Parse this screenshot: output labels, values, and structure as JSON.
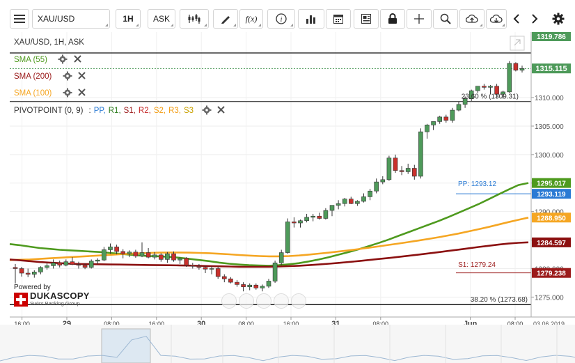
{
  "toolbar": {
    "menu_icon": "hamburger-icon",
    "instrument": "XAU/USD",
    "timeframe": "1H",
    "side": "ASK",
    "icons": [
      "candles-icon",
      "pencil-icon",
      "function-icon",
      "info-icon",
      "bar-chart-icon",
      "calendar-icon",
      "news-icon",
      "lock-icon",
      "crosshair-icon",
      "zoom-icon",
      "upload-icon",
      "download-icon",
      "arrow-left-icon",
      "arrow-right-icon",
      "settings-icon"
    ],
    "fx_label": "f(x)"
  },
  "legend": {
    "title": "XAU/USD, 1H, ASK",
    "sma55": "SMA (55)",
    "sma200": "SMA (200)",
    "sma100": "SMA (100)",
    "pivot_name": "PIVOTPOINT (0, 9)",
    "pivot_sep": ":",
    "pivot_items": [
      {
        "t": "PP,",
        "c": "#2a7ad4"
      },
      {
        "t": "R1,",
        "c": "#2e7d1e"
      },
      {
        "t": "S1,",
        "c": "#9b1b1b"
      },
      {
        "t": "R2,",
        "c": "#c62828"
      },
      {
        "t": "S2,",
        "c": "#f39c12"
      },
      {
        "t": "R3,",
        "c": "#f39c12"
      },
      {
        "t": "S3",
        "c": "#c9a100"
      }
    ]
  },
  "colors": {
    "up": "#4e9a5a",
    "down": "#c9302c",
    "sma55": "#4e9a1e",
    "sma100": "#f5a623",
    "sma200": "#8b1010",
    "pp": "#2a7ad4",
    "s1": "#9b1b1b",
    "price": "#4e9a5a"
  },
  "watermark": {
    "powered": "Powered by",
    "brand": "DUKASCOPY",
    "sub": "Swiss Banking Group"
  },
  "annotations": {
    "fib_top": "23.60 % (1309.31)",
    "fib_bottom": "38.20 % (1273.68)",
    "pp_label": "PP: 1293.12",
    "s1_label": "S1: 1279.24"
  },
  "chart_data": {
    "type": "candlestick",
    "instrument": "XAU/USD",
    "timeframe": "1H",
    "side": "ASK",
    "ylim": [
      1271.5,
      1321.5
    ],
    "y_ticks": [
      1275,
      1280,
      1285,
      1290,
      1295,
      1300,
      1305,
      1310
    ],
    "y_tick_labels": [
      "1275.000",
      "1280.000",
      "1285.000",
      "1290.000",
      "1295.000",
      "1300.000",
      "1305.000",
      "1310.000"
    ],
    "x_tick_labels": [
      "16:00",
      "29",
      "08:00",
      "16:00",
      "30",
      "08:00",
      "16:00",
      "31",
      "08:00",
      "Jun",
      "08:00"
    ],
    "x_tick_hours": [
      -8,
      0,
      8,
      16,
      24,
      32,
      40,
      48,
      56,
      72,
      80
    ],
    "date_label": "03.06.2019",
    "candles": [
      [
        1280.2,
        1280.8,
        1277.4,
        1280.0
      ],
      [
        1280.0,
        1280.3,
        1278.6,
        1279.2
      ],
      [
        1279.2,
        1280.0,
        1278.5,
        1279.0
      ],
      [
        1279.0,
        1279.7,
        1278.4,
        1279.4
      ],
      [
        1279.4,
        1280.4,
        1279.0,
        1280.2
      ],
      [
        1280.2,
        1281.0,
        1279.8,
        1280.5
      ],
      [
        1280.5,
        1281.6,
        1280.0,
        1281.0
      ],
      [
        1281.0,
        1281.4,
        1280.2,
        1280.6
      ],
      [
        1280.6,
        1281.6,
        1280.4,
        1281.2
      ],
      [
        1281.2,
        1282.0,
        1280.6,
        1280.7
      ],
      [
        1280.7,
        1281.2,
        1280.0,
        1280.6
      ],
      [
        1280.6,
        1280.9,
        1279.9,
        1280.2
      ],
      [
        1280.2,
        1281.6,
        1280.0,
        1281.3
      ],
      [
        1281.3,
        1281.8,
        1280.8,
        1281.5
      ],
      [
        1281.5,
        1283.8,
        1281.3,
        1283.3
      ],
      [
        1283.3,
        1284.4,
        1282.6,
        1283.8
      ],
      [
        1283.8,
        1284.2,
        1282.5,
        1283.0
      ],
      [
        1283.0,
        1283.4,
        1281.8,
        1282.6
      ],
      [
        1282.6,
        1283.2,
        1282.0,
        1282.9
      ],
      [
        1282.9,
        1283.3,
        1281.9,
        1282.2
      ],
      [
        1282.2,
        1284.6,
        1282.0,
        1282.8
      ],
      [
        1282.8,
        1283.6,
        1281.8,
        1282.0
      ],
      [
        1282.0,
        1282.9,
        1281.6,
        1282.4
      ],
      [
        1282.4,
        1282.7,
        1281.2,
        1281.6
      ],
      [
        1281.6,
        1282.9,
        1281.0,
        1282.6
      ],
      [
        1282.6,
        1283.0,
        1281.2,
        1281.5
      ],
      [
        1281.5,
        1282.0,
        1280.8,
        1281.8
      ],
      [
        1281.8,
        1282.0,
        1280.3,
        1280.6
      ],
      [
        1280.6,
        1281.0,
        1280.0,
        1280.4
      ],
      [
        1280.4,
        1280.8,
        1279.8,
        1280.2
      ],
      [
        1280.2,
        1280.5,
        1279.2,
        1279.9
      ],
      [
        1279.9,
        1280.4,
        1279.0,
        1280.0
      ],
      [
        1280.0,
        1280.3,
        1278.2,
        1278.6
      ],
      [
        1278.6,
        1279.0,
        1277.6,
        1278.2
      ],
      [
        1278.2,
        1278.5,
        1277.4,
        1277.6
      ],
      [
        1277.6,
        1278.0,
        1276.8,
        1277.2
      ],
      [
        1277.2,
        1277.6,
        1276.0,
        1276.8
      ],
      [
        1276.8,
        1277.4,
        1276.2,
        1277.1
      ],
      [
        1277.1,
        1277.4,
        1276.3,
        1276.6
      ],
      [
        1276.6,
        1277.2,
        1276.0,
        1276.9
      ],
      [
        1276.9,
        1278.2,
        1276.6,
        1277.8
      ],
      [
        1277.8,
        1281.4,
        1277.5,
        1281.0
      ],
      [
        1281.0,
        1283.3,
        1280.6,
        1282.8
      ],
      [
        1282.8,
        1288.8,
        1282.6,
        1288.2
      ],
      [
        1288.2,
        1289.0,
        1287.2,
        1288.0
      ],
      [
        1288.0,
        1288.6,
        1287.2,
        1288.4
      ],
      [
        1288.4,
        1289.6,
        1288.1,
        1289.0
      ],
      [
        1289.0,
        1289.6,
        1288.3,
        1289.2
      ],
      [
        1289.2,
        1289.8,
        1288.6,
        1288.8
      ],
      [
        1288.8,
        1290.6,
        1288.6,
        1290.2
      ],
      [
        1290.2,
        1291.0,
        1289.2,
        1291.1
      ],
      [
        1291.1,
        1292.0,
        1290.4,
        1291.4
      ],
      [
        1291.4,
        1292.4,
        1290.9,
        1292.2
      ],
      [
        1292.2,
        1292.6,
        1291.3,
        1291.4
      ],
      [
        1291.4,
        1292.0,
        1291.0,
        1291.8
      ],
      [
        1291.8,
        1293.2,
        1291.6,
        1292.6
      ],
      [
        1292.6,
        1294.0,
        1292.0,
        1293.6
      ],
      [
        1293.6,
        1295.8,
        1293.2,
        1295.2
      ],
      [
        1295.2,
        1296.2,
        1294.8,
        1295.6
      ],
      [
        1295.6,
        1299.8,
        1295.4,
        1299.4
      ],
      [
        1299.4,
        1300.0,
        1296.8,
        1297.2
      ],
      [
        1297.2,
        1298.0,
        1296.4,
        1297.0
      ],
      [
        1297.0,
        1298.4,
        1296.6,
        1297.6
      ],
      [
        1297.6,
        1298.2,
        1295.6,
        1296.2
      ],
      [
        1296.2,
        1304.6,
        1295.8,
        1304.0
      ],
      [
        1304.0,
        1305.4,
        1302.8,
        1305.2
      ],
      [
        1305.2,
        1305.8,
        1304.3,
        1305.8
      ],
      [
        1305.8,
        1306.8,
        1305.4,
        1306.6
      ],
      [
        1306.6,
        1307.0,
        1305.6,
        1306.0
      ],
      [
        1306.0,
        1308.2,
        1305.6,
        1307.8
      ],
      [
        1307.8,
        1309.3,
        1307.6,
        1308.8
      ],
      [
        1308.8,
        1310.2,
        1308.2,
        1309.8
      ],
      [
        1309.8,
        1311.4,
        1309.4,
        1311.2
      ],
      [
        1311.2,
        1312.0,
        1310.8,
        1312.0
      ],
      [
        1312.0,
        1312.4,
        1311.4,
        1311.8
      ],
      [
        1311.8,
        1312.2,
        1310.6,
        1312.0
      ],
      [
        1312.0,
        1312.4,
        1310.0,
        1310.6
      ],
      [
        1310.6,
        1311.2,
        1309.8,
        1311.0
      ],
      [
        1311.0,
        1316.4,
        1310.8,
        1316.0
      ],
      [
        1316.0,
        1316.2,
        1314.6,
        1314.8
      ],
      [
        1314.8,
        1315.6,
        1314.4,
        1315.1
      ]
    ],
    "series": [
      {
        "name": "SMA (55)",
        "values": [
          1284.3,
          1284.1,
          1283.85,
          1283.6,
          1283.45,
          1283.3,
          1283.2,
          1283.1,
          1283.0,
          1282.9,
          1282.75,
          1282.6,
          1282.45,
          1282.3,
          1282.2,
          1282.15,
          1282.05,
          1281.9,
          1281.7,
          1281.5,
          1281.3,
          1281.05,
          1280.85,
          1280.7,
          1280.6,
          1280.55,
          1280.5,
          1280.6,
          1280.75,
          1280.95,
          1281.25,
          1281.6,
          1282.0,
          1282.45,
          1282.9,
          1283.4,
          1283.95,
          1284.5,
          1285.1,
          1285.75,
          1286.4,
          1287.05,
          1287.7,
          1288.35,
          1289.05,
          1289.8,
          1290.55,
          1291.3,
          1292.15,
          1293.0,
          1293.85,
          1294.65,
          1295.02
        ]
      },
      {
        "name": "SMA (100)",
        "values": [
          1281.5,
          1281.55,
          1281.6,
          1281.7,
          1281.8,
          1281.9,
          1282.0,
          1282.1,
          1282.2,
          1282.3,
          1282.4,
          1282.5,
          1282.6,
          1282.68,
          1282.75,
          1282.8,
          1282.82,
          1282.82,
          1282.8,
          1282.75,
          1282.7,
          1282.6,
          1282.5,
          1282.38,
          1282.28,
          1282.2,
          1282.15,
          1282.15,
          1282.2,
          1282.3,
          1282.45,
          1282.62,
          1282.8,
          1283.0,
          1283.2,
          1283.42,
          1283.65,
          1283.9,
          1284.15,
          1284.4,
          1284.65,
          1284.92,
          1285.2,
          1285.5,
          1285.82,
          1286.15,
          1286.52,
          1286.9,
          1287.3,
          1287.72,
          1288.15,
          1288.55,
          1288.95
        ]
      },
      {
        "name": "SMA (200)",
        "values": [
          1281.6,
          1281.45,
          1281.3,
          1281.15,
          1281.05,
          1280.95,
          1280.85,
          1280.8,
          1280.78,
          1280.75,
          1280.72,
          1280.7,
          1280.68,
          1280.65,
          1280.62,
          1280.6,
          1280.58,
          1280.56,
          1280.52,
          1280.48,
          1280.44,
          1280.4,
          1280.36,
          1280.32,
          1280.3,
          1280.3,
          1280.32,
          1280.36,
          1280.42,
          1280.5,
          1280.6,
          1280.72,
          1280.85,
          1281.0,
          1281.16,
          1281.32,
          1281.5,
          1281.68,
          1281.86,
          1282.05,
          1282.25,
          1282.45,
          1282.66,
          1282.88,
          1283.1,
          1283.32,
          1283.55,
          1283.78,
          1284.0,
          1284.2,
          1284.38,
          1284.52,
          1284.6
        ]
      }
    ],
    "pivot_lines": {
      "PP": 1293.12,
      "S1": 1279.24
    },
    "fib_levels": [
      {
        "label": "23.60 %",
        "value": 1309.31
      },
      {
        "label": "38.20 %",
        "value": 1273.68
      }
    ],
    "price_tags": [
      {
        "value": 1319.786,
        "text": "1319.786"
      },
      {
        "value": 1315.115,
        "text": "1315.115"
      },
      {
        "value": 1295.017,
        "text": "1295.017"
      },
      {
        "value": 1293.119,
        "text": "1293.119"
      },
      {
        "value": 1288.95,
        "text": "1288.950"
      },
      {
        "value": 1284.597,
        "text": "1284.597"
      },
      {
        "value": 1279.238,
        "text": "1279.238"
      }
    ]
  }
}
